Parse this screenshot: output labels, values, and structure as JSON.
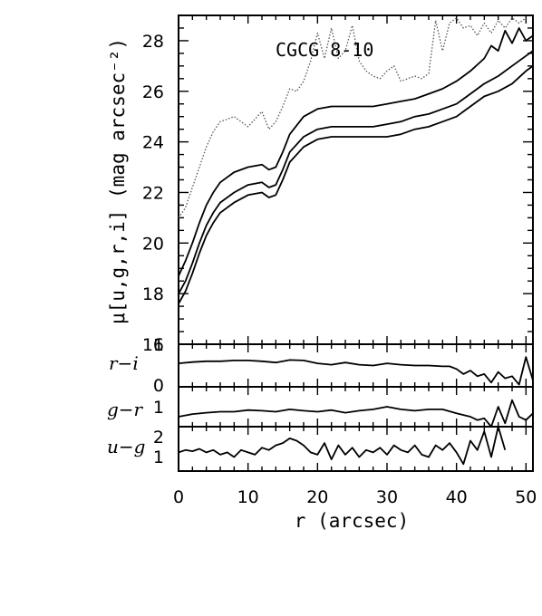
{
  "chart_data": {
    "type": "line",
    "title": "CGCG 8-10",
    "xlabel": "r (arcsec)",
    "xlim": [
      0,
      51
    ],
    "xticks": [
      "0",
      "10",
      "20",
      "30",
      "40",
      "50"
    ],
    "panels": [
      {
        "id": "mu",
        "ylabel": "μ[u,g,r,i] (mag arcsec⁻²)",
        "ylim": [
          29,
          16
        ],
        "yticks": [
          "16",
          "18",
          "20",
          "22",
          "24",
          "26",
          "28"
        ],
        "series": [
          {
            "style": "solid",
            "x": [
              0,
              1,
              2,
              3,
              4,
              5,
              6,
              8,
              10,
              12,
              13,
              14,
              15,
              16,
              18,
              20,
              22,
              25,
              28,
              30,
              32,
              34,
              36,
              38,
              40,
              42,
              44,
              46,
              48,
              50,
              51
            ],
            "y": [
              17.6,
              18.1,
              18.8,
              19.6,
              20.3,
              20.8,
              21.2,
              21.6,
              21.9,
              22.0,
              21.8,
              21.9,
              22.5,
              23.2,
              23.8,
              24.1,
              24.2,
              24.2,
              24.2,
              24.2,
              24.3,
              24.5,
              24.6,
              24.8,
              25.0,
              25.4,
              25.8,
              26.0,
              26.3,
              26.8,
              27.0
            ]
          },
          {
            "style": "solid",
            "x": [
              0,
              1,
              2,
              3,
              4,
              5,
              6,
              8,
              10,
              12,
              13,
              14,
              15,
              16,
              18,
              20,
              22,
              25,
              28,
              30,
              32,
              34,
              36,
              38,
              40,
              42,
              44,
              46,
              48,
              50,
              51
            ],
            "y": [
              18.0,
              18.5,
              19.2,
              20.0,
              20.7,
              21.2,
              21.6,
              22.0,
              22.3,
              22.4,
              22.2,
              22.3,
              22.9,
              23.6,
              24.2,
              24.5,
              24.6,
              24.6,
              24.6,
              24.7,
              24.8,
              25.0,
              25.1,
              25.3,
              25.5,
              25.9,
              26.3,
              26.6,
              27.0,
              27.4,
              27.6
            ]
          },
          {
            "style": "solid",
            "x": [
              0,
              1,
              2,
              3,
              4,
              5,
              6,
              8,
              10,
              12,
              13,
              14,
              15,
              16,
              18,
              20,
              22,
              25,
              28,
              30,
              32,
              34,
              36,
              38,
              40,
              42,
              44,
              45,
              46,
              47,
              48,
              49,
              50,
              51
            ],
            "y": [
              18.7,
              19.3,
              20.0,
              20.8,
              21.5,
              22.0,
              22.4,
              22.8,
              23.0,
              23.1,
              22.9,
              23.0,
              23.6,
              24.3,
              25.0,
              25.3,
              25.4,
              25.4,
              25.4,
              25.5,
              25.6,
              25.7,
              25.9,
              26.1,
              26.4,
              26.8,
              27.3,
              27.8,
              27.6,
              28.4,
              27.9,
              28.5,
              28.0,
              28.2
            ]
          },
          {
            "style": "dotted",
            "x": [
              0,
              1,
              2,
              3,
              4,
              5,
              6,
              7,
              8,
              9,
              10,
              11,
              12,
              13,
              14,
              15,
              16,
              17,
              18,
              19,
              20,
              20.5,
              21,
              22,
              23,
              24,
              25,
              26,
              27,
              28,
              29,
              30,
              31,
              32,
              33,
              34,
              35,
              36,
              37,
              38,
              39,
              40,
              41,
              42,
              43,
              44,
              45,
              46,
              47,
              48,
              49,
              50
            ],
            "y": [
              21.0,
              21.4,
              22.2,
              23.0,
              23.8,
              24.4,
              24.8,
              24.9,
              25.0,
              24.8,
              24.6,
              24.9,
              25.2,
              24.5,
              24.8,
              25.4,
              26.1,
              26.0,
              26.4,
              27.2,
              28.3,
              27.8,
              27.3,
              28.5,
              27.3,
              27.6,
              28.6,
              27.2,
              26.8,
              26.6,
              26.5,
              26.8,
              27.0,
              26.4,
              26.5,
              26.6,
              26.5,
              26.7,
              28.8,
              27.6,
              28.7,
              28.9,
              28.5,
              28.6,
              28.2,
              28.7,
              28.3,
              28.8,
              28.5,
              28.9,
              28.7,
              28.9
            ]
          }
        ]
      },
      {
        "id": "r-i",
        "ylabel": "r−i",
        "ylim": [
          0,
          1
        ],
        "yticks": [
          "1",
          "0"
        ],
        "series": [
          {
            "style": "solid",
            "x": [
              0,
              2,
              4,
              6,
              8,
              10,
              12,
              14,
              16,
              18,
              20,
              22,
              24,
              26,
              28,
              30,
              32,
              34,
              36,
              38,
              39,
              40,
              41,
              42,
              43,
              44,
              45,
              46,
              47,
              48,
              49,
              50,
              51
            ],
            "y": [
              0.45,
              0.42,
              0.4,
              0.4,
              0.38,
              0.38,
              0.4,
              0.43,
              0.37,
              0.38,
              0.45,
              0.48,
              0.43,
              0.48,
              0.5,
              0.45,
              0.48,
              0.5,
              0.5,
              0.52,
              0.52,
              0.58,
              0.7,
              0.62,
              0.75,
              0.7,
              0.9,
              0.65,
              0.8,
              0.75,
              0.95,
              0.3,
              0.85
            ]
          }
        ]
      },
      {
        "id": "g-r",
        "ylabel": "g−r",
        "ylim": [
          0,
          1.2
        ],
        "yticks": [
          "1"
        ],
        "series": [
          {
            "style": "solid",
            "x": [
              0,
              2,
              4,
              6,
              8,
              10,
              12,
              14,
              16,
              18,
              20,
              22,
              24,
              26,
              28,
              30,
              32,
              34,
              36,
              38,
              40,
              42,
              43,
              44,
              45,
              46,
              47,
              48,
              49,
              50,
              51
            ],
            "y": [
              0.9,
              0.82,
              0.78,
              0.75,
              0.75,
              0.7,
              0.72,
              0.75,
              0.68,
              0.72,
              0.75,
              0.7,
              0.78,
              0.72,
              0.68,
              0.6,
              0.68,
              0.72,
              0.68,
              0.68,
              0.8,
              0.9,
              1.0,
              0.95,
              1.2,
              0.6,
              1.1,
              0.4,
              0.9,
              1.0,
              0.8
            ]
          }
        ]
      },
      {
        "id": "u-g",
        "ylabel": "u−g",
        "ylim": [
          0.6,
          2.5
        ],
        "yticks": [
          "2",
          "1"
        ],
        "series": [
          {
            "style": "solid",
            "x": [
              0,
              1,
              2,
              3,
              4,
              5,
              6,
              7,
              8,
              9,
              10,
              11,
              12,
              13,
              14,
              15,
              16,
              17,
              18,
              19,
              20,
              21,
              22,
              23,
              24,
              25,
              26,
              27,
              28,
              29,
              30,
              31,
              32,
              33,
              34,
              35,
              36,
              37,
              38,
              39,
              40,
              41,
              42,
              43,
              44,
              45,
              46,
              47
            ],
            "y": [
              1.7,
              1.6,
              1.65,
              1.55,
              1.7,
              1.6,
              1.8,
              1.7,
              1.9,
              1.6,
              1.7,
              1.8,
              1.5,
              1.6,
              1.4,
              1.3,
              1.1,
              1.2,
              1.4,
              1.7,
              1.8,
              1.3,
              2.0,
              1.4,
              1.8,
              1.5,
              1.9,
              1.6,
              1.7,
              1.5,
              1.8,
              1.4,
              1.6,
              1.7,
              1.4,
              1.8,
              1.9,
              1.4,
              1.6,
              1.3,
              1.7,
              2.2,
              1.2,
              1.6,
              0.8,
              1.9,
              0.6,
              1.6
            ]
          }
        ]
      }
    ]
  }
}
